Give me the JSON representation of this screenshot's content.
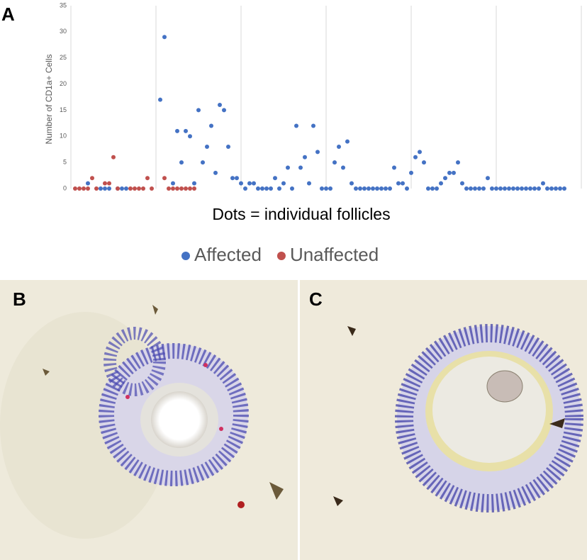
{
  "panel_labels": {
    "a": "A",
    "b": "B",
    "c": "C"
  },
  "chart_data": {
    "type": "scatter",
    "ylabel": "Number of CD1a+ Cells",
    "annotation": "Dots = individual follicles",
    "xlim": [
      0,
      120
    ],
    "xticks": [
      0,
      20,
      40,
      60,
      80,
      100,
      120
    ],
    "ylim": [
      0,
      35
    ],
    "yticks": [
      0,
      5,
      10,
      15,
      20,
      25,
      30,
      35
    ],
    "grid": true,
    "legend": "bottom",
    "series": [
      {
        "name": "Affected",
        "color": "#4472c4",
        "x": [
          4,
          7,
          8,
          9,
          11,
          12,
          13,
          21,
          22,
          24,
          25,
          26,
          27,
          28,
          29,
          30,
          31,
          32,
          33,
          34,
          35,
          36,
          37,
          38,
          39,
          40,
          41,
          42,
          43,
          44,
          45,
          46,
          47,
          48,
          49,
          50,
          51,
          52,
          53,
          54,
          55,
          56,
          57,
          58,
          59,
          60,
          61,
          62,
          63,
          64,
          65,
          66,
          67,
          68,
          69,
          70,
          71,
          72,
          73,
          74,
          75,
          76,
          77,
          78,
          79,
          80,
          81,
          82,
          83,
          84,
          85,
          86,
          87,
          88,
          89,
          90,
          91,
          92,
          93,
          94,
          95,
          96,
          97,
          98,
          99,
          100,
          101,
          102,
          103,
          104,
          105,
          106,
          107,
          108,
          109,
          110,
          111,
          112,
          113,
          114,
          115,
          116
        ],
        "values": [
          1,
          0,
          0,
          0,
          0,
          0,
          0,
          17,
          29,
          1,
          11,
          5,
          11,
          10,
          1,
          15,
          5,
          8,
          12,
          3,
          16,
          15,
          8,
          2,
          2,
          1,
          0,
          1,
          1,
          0,
          0,
          0,
          0,
          2,
          0,
          1,
          4,
          0,
          12,
          4,
          6,
          1,
          12,
          7,
          0,
          0,
          0,
          5,
          8,
          4,
          9,
          1,
          0,
          0,
          0,
          0,
          0,
          0,
          0,
          0,
          0,
          4,
          1,
          1,
          0,
          3,
          6,
          7,
          5,
          0,
          0,
          0,
          1,
          2,
          3,
          3,
          5,
          1,
          0,
          0,
          0,
          0,
          0,
          2,
          0,
          0,
          0,
          0,
          0,
          0,
          0,
          0,
          0,
          0,
          0,
          0,
          1,
          0,
          0,
          0,
          0,
          0
        ]
      },
      {
        "name": "Unaffected",
        "color": "#c0504d",
        "x": [
          1,
          2,
          3,
          4,
          5,
          6,
          8,
          9,
          10,
          11,
          14,
          15,
          16,
          17,
          18,
          19,
          22,
          23,
          24,
          25,
          26,
          27,
          28,
          29
        ],
        "values": [
          0,
          0,
          0,
          0,
          2,
          0,
          1,
          1,
          6,
          0,
          0,
          0,
          0,
          0,
          2,
          0,
          2,
          0,
          0,
          0,
          0,
          0,
          0,
          0
        ]
      }
    ]
  }
}
